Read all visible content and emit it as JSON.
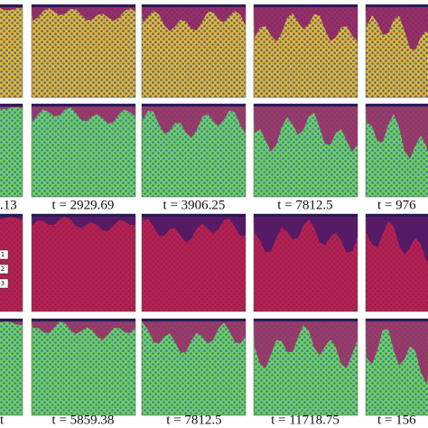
{
  "rows": [
    {
      "labels": [
        ".13",
        "t = 2929.69",
        "t = 3906.25",
        "t = 7812.5",
        "t = 976"
      ]
    },
    {
      "labels": [
        "t",
        "t = 5859.38",
        "t = 7812.5",
        "t = 11718.75",
        "t = 156"
      ]
    }
  ],
  "legend": [
    "1",
    "2",
    "3"
  ]
}
